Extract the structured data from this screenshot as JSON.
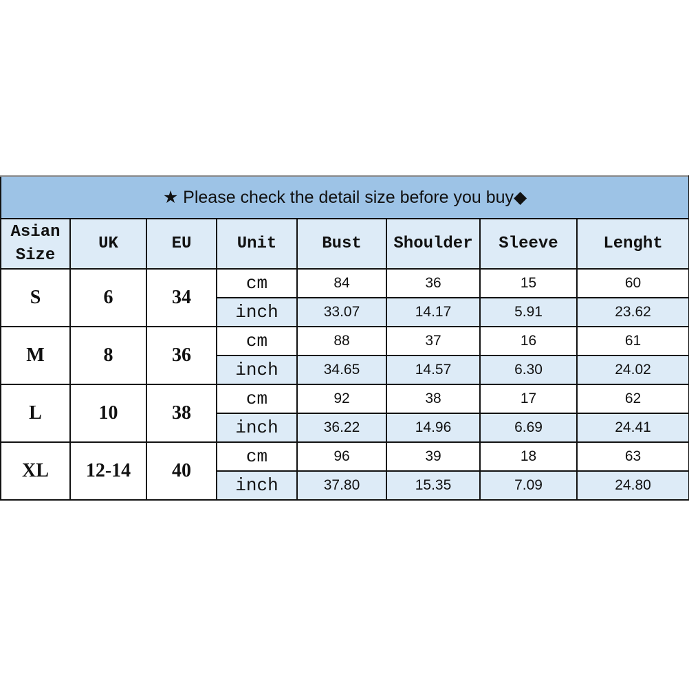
{
  "title": "★ Please check the detail size before you buy◆",
  "headers": [
    "Asian Size",
    "UK",
    "EU",
    "Unit",
    "Bust",
    "Shoulder",
    "Sleeve",
    "Lenght"
  ],
  "units": {
    "cm": "cm",
    "inch": "inch"
  },
  "rows": [
    {
      "asian": "S",
      "uk": "6",
      "eu": "34",
      "cm": [
        "84",
        "36",
        "15",
        "60"
      ],
      "inch": [
        "33.07",
        "14.17",
        "5.91",
        "23.62"
      ]
    },
    {
      "asian": "M",
      "uk": "8",
      "eu": "36",
      "cm": [
        "88",
        "37",
        "16",
        "61"
      ],
      "inch": [
        "34.65",
        "14.57",
        "6.30",
        "24.02"
      ]
    },
    {
      "asian": "L",
      "uk": "10",
      "eu": "38",
      "cm": [
        "92",
        "38",
        "17",
        "62"
      ],
      "inch": [
        "36.22",
        "14.96",
        "6.69",
        "24.41"
      ]
    },
    {
      "asian": "XL",
      "uk": "12-14",
      "eu": "40",
      "cm": [
        "96",
        "39",
        "18",
        "63"
      ],
      "inch": [
        "37.80",
        "15.35",
        "7.09",
        "24.80"
      ]
    }
  ],
  "colors": {
    "title_bg": "#9dc3e6",
    "header_bg": "#ddebf7",
    "inch_row_bg": "#ddebf7"
  }
}
